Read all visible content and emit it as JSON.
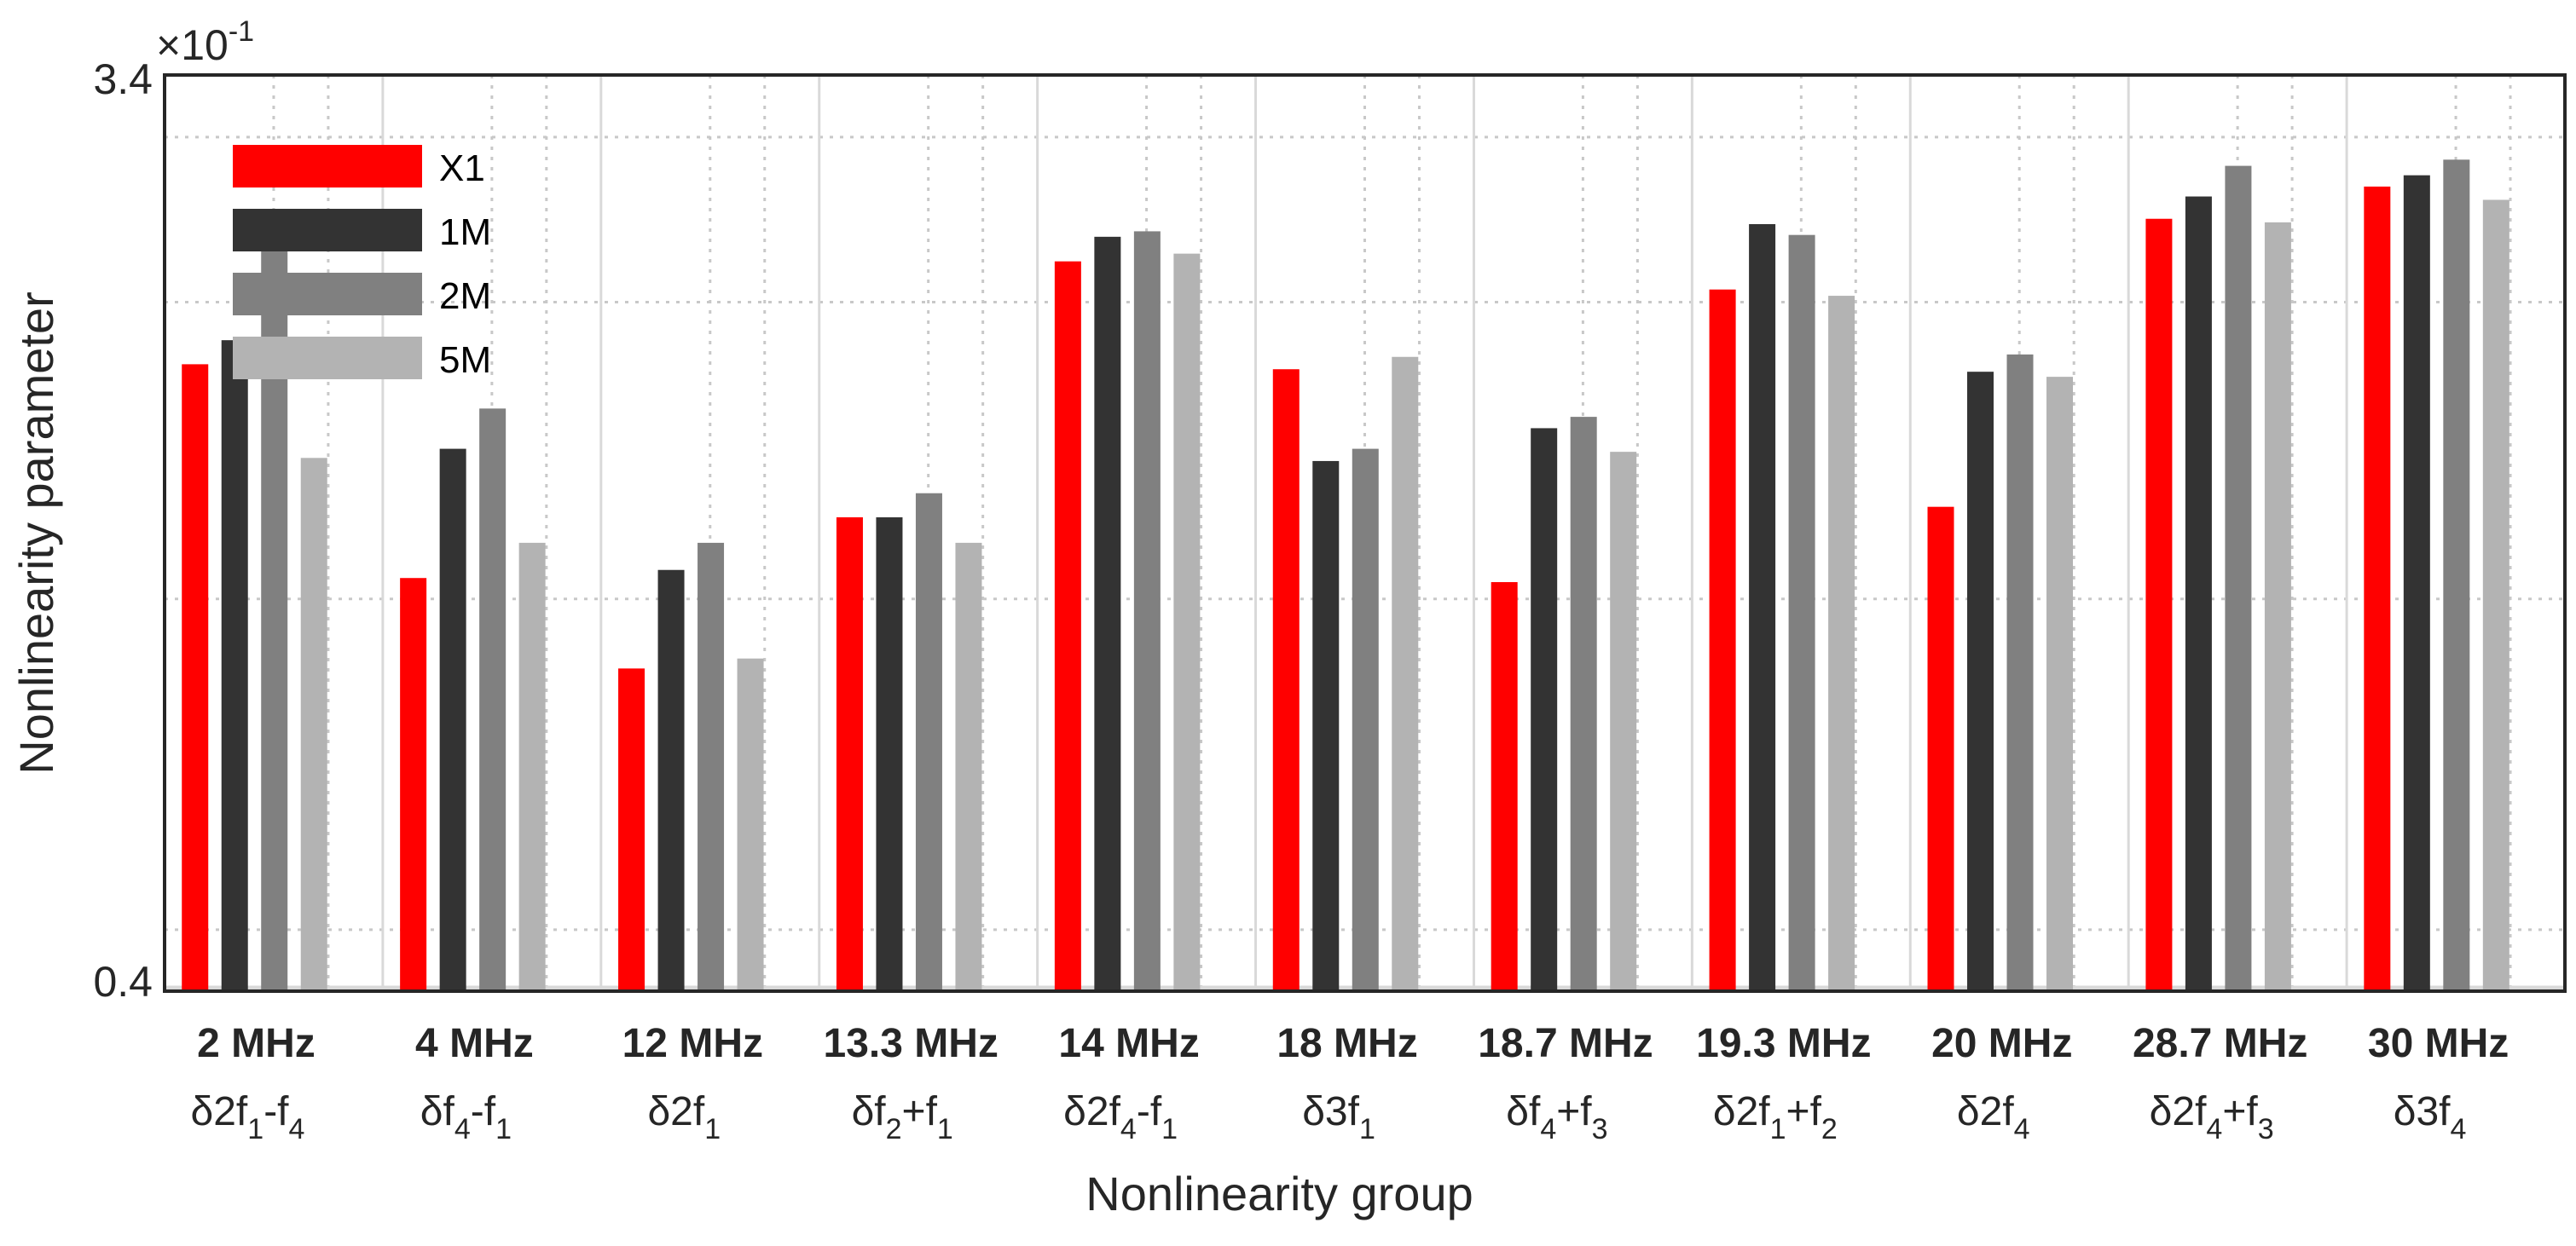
{
  "chart_data": {
    "type": "bar",
    "categories": [
      {
        "freq": "2 MHz",
        "label": [
          [
            "δ2f",
            ""
          ],
          [
            "1",
            "sub"
          ],
          [
            "-f",
            ""
          ],
          [
            "4",
            "sub"
          ]
        ]
      },
      {
        "freq": "4 MHz",
        "label": [
          [
            "δf",
            ""
          ],
          [
            "4",
            "sub"
          ],
          [
            "-f",
            ""
          ],
          [
            "1",
            "sub"
          ]
        ]
      },
      {
        "freq": "12 MHz",
        "label": [
          [
            "δ2f",
            ""
          ],
          [
            "1",
            "sub"
          ]
        ]
      },
      {
        "freq": "13.3 MHz",
        "label": [
          [
            "δf",
            ""
          ],
          [
            "2",
            "sub"
          ],
          [
            "+f",
            ""
          ],
          [
            "1",
            "sub"
          ]
        ]
      },
      {
        "freq": "14 MHz",
        "label": [
          [
            "δ2f",
            ""
          ],
          [
            "4",
            "sub"
          ],
          [
            "-f",
            ""
          ],
          [
            "1",
            "sub"
          ]
        ]
      },
      {
        "freq": "18 MHz",
        "label": [
          [
            "δ3f",
            ""
          ],
          [
            "1",
            "sub"
          ]
        ]
      },
      {
        "freq": "18.7 MHz",
        "label": [
          [
            "δf",
            ""
          ],
          [
            "4",
            "sub"
          ],
          [
            "+f",
            ""
          ],
          [
            "3",
            "sub"
          ]
        ]
      },
      {
        "freq": "19.3 MHz",
        "label": [
          [
            "δ2f",
            ""
          ],
          [
            "1",
            "sub"
          ],
          [
            "+f",
            ""
          ],
          [
            "2",
            "sub"
          ]
        ]
      },
      {
        "freq": "20 MHz",
        "label": [
          [
            "δ2f",
            ""
          ],
          [
            "4",
            "sub"
          ]
        ]
      },
      {
        "freq": "28.7 MHz",
        "label": [
          [
            "δ2f",
            ""
          ],
          [
            "4",
            "sub"
          ],
          [
            "+f",
            ""
          ],
          [
            "3",
            "sub"
          ]
        ]
      },
      {
        "freq": "30 MHz",
        "label": [
          [
            "δ3f",
            ""
          ],
          [
            "4",
            "sub"
          ]
        ]
      }
    ],
    "series": [
      {
        "name": "X1",
        "color": "#ff0000",
        "values": [
          1.73,
          1.05,
          0.85,
          1.21,
          2.2,
          1.71,
          1.04,
          2.06,
          1.24,
          2.43,
          2.62
        ]
      },
      {
        "name": "1M",
        "color": "#333333",
        "values": [
          1.83,
          1.42,
          1.07,
          1.21,
          2.33,
          1.38,
          1.49,
          2.4,
          1.7,
          2.56,
          2.69
        ]
      },
      {
        "name": "2M",
        "color": "#808080",
        "values": [
          2.27,
          1.56,
          1.14,
          1.28,
          2.36,
          1.42,
          1.53,
          2.34,
          1.77,
          2.75,
          2.79
        ]
      },
      {
        "name": "5M",
        "color": "#b3b3b3",
        "values": [
          1.39,
          1.14,
          0.87,
          1.14,
          2.24,
          1.76,
          1.41,
          2.03,
          1.68,
          2.41,
          2.54
        ]
      }
    ],
    "ylabel": "Nonlinearity parameter",
    "xlabel": "Nonlinearity group",
    "yscale": "log",
    "ylim": [
      0.4,
      3.4
    ],
    "yticks": [
      "0.4",
      "3.4"
    ],
    "yaxis_multiplier": {
      "base": "×10",
      "exponent": "-1"
    },
    "grid": true,
    "legend_position": "top-left"
  }
}
